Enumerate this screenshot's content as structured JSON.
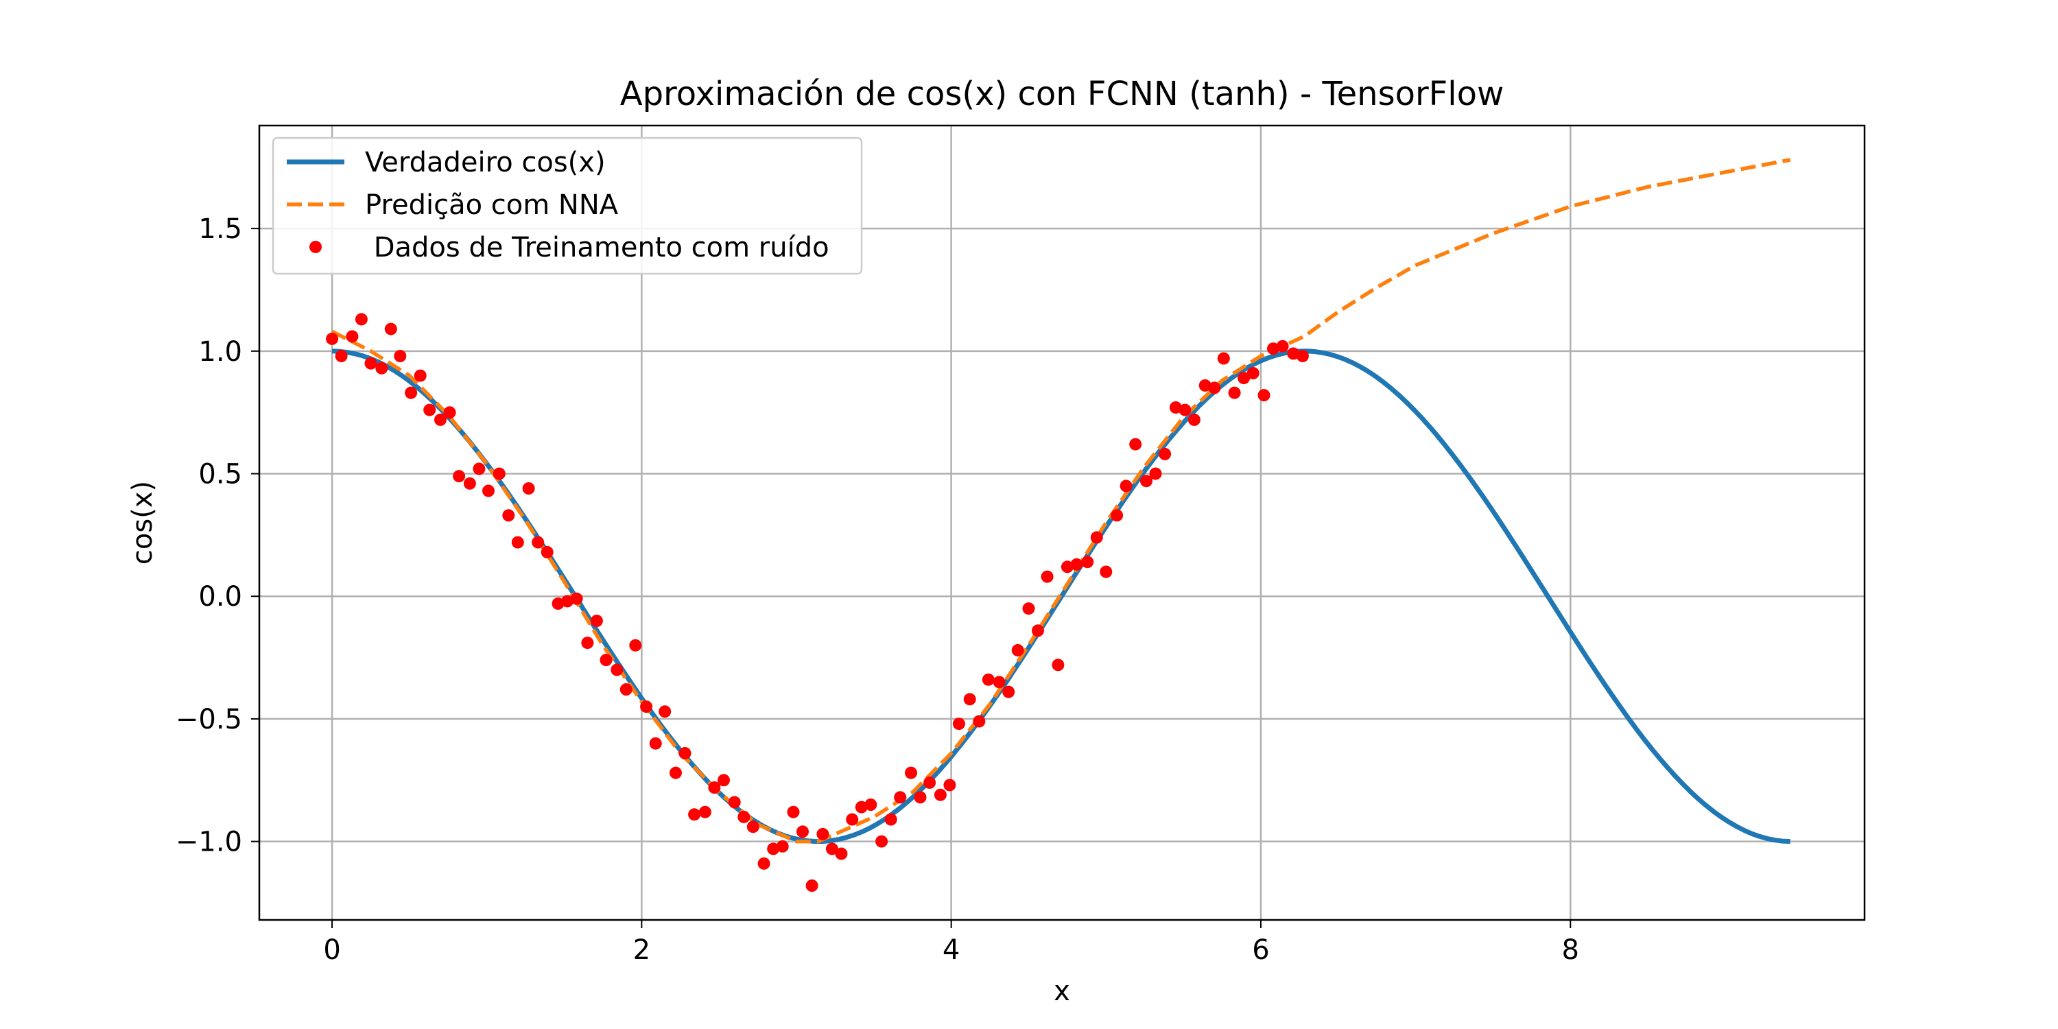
{
  "chart_data": {
    "type": "line",
    "title": "Aproximación de cos(x) con FCNN (tanh) - TensorFlow",
    "xlabel": "x",
    "ylabel": "cos(x)",
    "xlim": [
      -0.47,
      9.9
    ],
    "ylim": [
      -1.32,
      1.92
    ],
    "xticks": [
      0,
      2,
      4,
      6,
      8
    ],
    "xtick_labels": [
      "0",
      "2",
      "4",
      "6",
      "8"
    ],
    "yticks": [
      -1.0,
      -0.5,
      0.0,
      0.5,
      1.0,
      1.5
    ],
    "ytick_labels": [
      "−1.0",
      "−0.5",
      "0.0",
      "0.5",
      "1.0",
      "1.5"
    ],
    "grid": true,
    "legend_position": "upper-left",
    "series": [
      {
        "name": "Verdadeiro cos(x)",
        "kind": "line",
        "color": "#1f77b4",
        "style": "solid",
        "function": "cos",
        "x_range": [
          0,
          9.42
        ],
        "samples": 190
      },
      {
        "name": "Predição com NNA",
        "kind": "line",
        "color": "#ff7f0e",
        "style": "dashed",
        "x": [
          0,
          0.25,
          0.5,
          0.75,
          1.0,
          1.25,
          1.5,
          1.75,
          2.0,
          2.25,
          2.5,
          2.75,
          3.0,
          3.14,
          3.25,
          3.5,
          3.75,
          4.0,
          4.25,
          4.5,
          4.75,
          5.0,
          5.25,
          5.5,
          5.75,
          6.0,
          6.28,
          6.5,
          6.75,
          7.0,
          7.5,
          8.0,
          8.5,
          9.0,
          9.42
        ],
        "y": [
          1.08,
          1.0,
          0.9,
          0.74,
          0.54,
          0.31,
          0.06,
          -0.2,
          -0.43,
          -0.64,
          -0.8,
          -0.93,
          -1.0,
          -1.0,
          -0.97,
          -0.9,
          -0.8,
          -0.64,
          -0.44,
          -0.2,
          0.05,
          0.3,
          0.53,
          0.73,
          0.88,
          0.98,
          1.06,
          1.16,
          1.26,
          1.35,
          1.48,
          1.59,
          1.67,
          1.73,
          1.78
        ]
      },
      {
        "name": " Dados de Treinamento com ruído",
        "kind": "scatter",
        "color": "#ff0000",
        "x": [
          0.0,
          0.06,
          0.13,
          0.19,
          0.25,
          0.32,
          0.38,
          0.44,
          0.51,
          0.57,
          0.63,
          0.7,
          0.76,
          0.82,
          0.89,
          0.95,
          1.01,
          1.08,
          1.14,
          1.2,
          1.27,
          1.33,
          1.39,
          1.46,
          1.52,
          1.58,
          1.65,
          1.71,
          1.77,
          1.84,
          1.9,
          1.96,
          2.03,
          2.09,
          2.15,
          2.22,
          2.28,
          2.34,
          2.41,
          2.47,
          2.53,
          2.6,
          2.66,
          2.72,
          2.79,
          2.85,
          2.91,
          2.98,
          3.04,
          3.1,
          3.17,
          3.23,
          3.29,
          3.36,
          3.42,
          3.48,
          3.55,
          3.61,
          3.67,
          3.74,
          3.8,
          3.86,
          3.93,
          3.99,
          4.05,
          4.12,
          4.18,
          4.24,
          4.31,
          4.37,
          4.43,
          4.5,
          4.56,
          4.62,
          4.69,
          4.75,
          4.81,
          4.88,
          4.94,
          5.0,
          5.07,
          5.13,
          5.19,
          5.26,
          5.32,
          5.38,
          5.45,
          5.51,
          5.57,
          5.64,
          5.7,
          5.76,
          5.83,
          5.89,
          5.95,
          6.02,
          6.08,
          6.14,
          6.21,
          6.27
        ],
        "y": [
          1.05,
          0.98,
          1.06,
          1.13,
          0.95,
          0.93,
          1.09,
          0.98,
          0.83,
          0.9,
          0.76,
          0.72,
          0.75,
          0.49,
          0.46,
          0.52,
          0.43,
          0.5,
          0.33,
          0.22,
          0.44,
          0.22,
          0.18,
          -0.03,
          -0.02,
          -0.01,
          -0.19,
          -0.1,
          -0.26,
          -0.3,
          -0.38,
          -0.2,
          -0.45,
          -0.6,
          -0.47,
          -0.72,
          -0.64,
          -0.89,
          -0.88,
          -0.78,
          -0.75,
          -0.84,
          -0.9,
          -0.94,
          -1.09,
          -1.03,
          -1.02,
          -0.88,
          -0.96,
          -1.18,
          -0.97,
          -1.03,
          -1.05,
          -0.91,
          -0.86,
          -0.85,
          -1.0,
          -0.91,
          -0.82,
          -0.72,
          -0.82,
          -0.76,
          -0.81,
          -0.77,
          -0.52,
          -0.42,
          -0.51,
          -0.34,
          -0.35,
          -0.39,
          -0.22,
          -0.05,
          -0.14,
          0.08,
          -0.28,
          0.12,
          0.13,
          0.14,
          0.24,
          0.1,
          0.33,
          0.45,
          0.62,
          0.47,
          0.5,
          0.58,
          0.77,
          0.76,
          0.72,
          0.86,
          0.85,
          0.97,
          0.83,
          0.89,
          0.91,
          0.82,
          1.01,
          1.02,
          0.99,
          0.98
        ]
      }
    ]
  }
}
